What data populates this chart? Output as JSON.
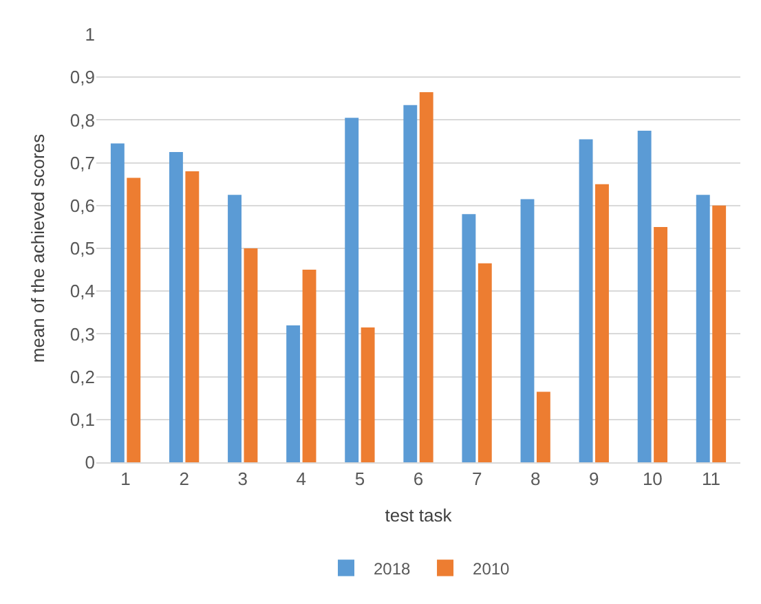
{
  "chart_data": {
    "type": "bar",
    "xlabel": "test task",
    "ylabel": "mean of the achieved scores",
    "categories": [
      "1",
      "2",
      "3",
      "4",
      "5",
      "6",
      "7",
      "8",
      "9",
      "10",
      "11"
    ],
    "series": [
      {
        "name": "2018",
        "color": "#5b9bd5",
        "values": [
          0.745,
          0.725,
          0.625,
          0.32,
          0.805,
          0.835,
          0.58,
          0.615,
          0.755,
          0.775,
          0.625
        ]
      },
      {
        "name": "2010",
        "color": "#ed7d31",
        "values": [
          0.665,
          0.68,
          0.5,
          0.45,
          0.315,
          0.865,
          0.465,
          0.165,
          0.65,
          0.55,
          0.6
        ]
      }
    ],
    "ylim": [
      0,
      1
    ],
    "yticks": [
      {
        "value": 0,
        "label": "0"
      },
      {
        "value": 0.1,
        "label": "0,1"
      },
      {
        "value": 0.2,
        "label": "0,2"
      },
      {
        "value": 0.3,
        "label": "0,3"
      },
      {
        "value": 0.4,
        "label": "0,4"
      },
      {
        "value": 0.5,
        "label": "0,5"
      },
      {
        "value": 0.6,
        "label": "0,6"
      },
      {
        "value": 0.7,
        "label": "0,7"
      },
      {
        "value": 0.8,
        "label": "0,8"
      },
      {
        "value": 0.9,
        "label": "0,9"
      },
      {
        "value": 1,
        "label": "1"
      }
    ],
    "grid": "y",
    "legend": "bottom"
  }
}
